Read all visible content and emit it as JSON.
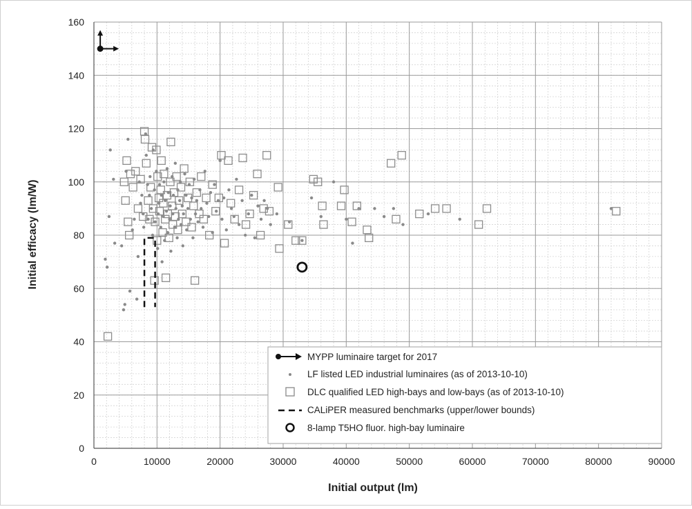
{
  "chart_data": {
    "type": "scatter",
    "xlabel": "Initial output (lm)",
    "ylabel": "Initial efficacy (lm/W)",
    "xlim": [
      0,
      90000
    ],
    "ylim": [
      0,
      160
    ],
    "x_ticks": [
      "0",
      "10000",
      "20000",
      "30000",
      "40000",
      "50000",
      "60000",
      "70000",
      "80000",
      "90000"
    ],
    "y_ticks": [
      "0",
      "20",
      "40",
      "60",
      "80",
      "100",
      "120",
      "140",
      "160"
    ],
    "grid": "major and minor",
    "legend_position": "bottom-right",
    "legend": [
      {
        "label": "MYPP luminaire target for 2017",
        "marker": "arrow-dot"
      },
      {
        "label": "LF listed LED industrial luminaires (as of 2013-10-10)",
        "marker": "small-dot"
      },
      {
        "label": "DLC qualified LED high-bays and low-bays (as of 2013-10-10)",
        "marker": "open-square"
      },
      {
        "label": "CALiPER measured benchmarks (upper/lower bounds)",
        "marker": "dashed-line"
      },
      {
        "label": "8-lamp T5HO fluor. high-bay luminaire",
        "marker": "open-circle"
      }
    ],
    "series": [
      {
        "name": "MYPP luminaire target for 2017",
        "points": [
          [
            1000,
            150
          ]
        ]
      },
      {
        "name": "LF listed LED industrial luminaires (as of 2013-10-10)",
        "points": [
          [
            1800,
            71
          ],
          [
            2100,
            68
          ],
          [
            2400,
            87
          ],
          [
            2600,
            112
          ],
          [
            3100,
            101
          ],
          [
            3300,
            77
          ],
          [
            4400,
            76
          ],
          [
            4700,
            52
          ],
          [
            4900,
            54
          ],
          [
            5100,
            104
          ],
          [
            5400,
            116
          ],
          [
            5700,
            59
          ],
          [
            6100,
            82
          ],
          [
            6400,
            86
          ],
          [
            6800,
            56
          ],
          [
            7000,
            72
          ],
          [
            7200,
            100
          ],
          [
            7400,
            92
          ],
          [
            7600,
            95
          ],
          [
            7800,
            88
          ],
          [
            7900,
            83
          ],
          [
            8200,
            118
          ],
          [
            8300,
            110
          ],
          [
            8500,
            99
          ],
          [
            8600,
            86
          ],
          [
            8800,
            95
          ],
          [
            8900,
            102
          ],
          [
            9100,
            90
          ],
          [
            9300,
            80
          ],
          [
            9400,
            112
          ],
          [
            9600,
            97
          ],
          [
            9700,
            85
          ],
          [
            9900,
            104
          ],
          [
            10100,
            75
          ],
          [
            10200,
            88
          ],
          [
            10300,
            92
          ],
          [
            10400,
            99
          ],
          [
            10600,
            83
          ],
          [
            10700,
            95
          ],
          [
            10800,
            70
          ],
          [
            11000,
            87
          ],
          [
            11100,
            100
          ],
          [
            11200,
            78
          ],
          [
            11300,
            93
          ],
          [
            11500,
            89
          ],
          [
            11600,
            105
          ],
          [
            11700,
            81
          ],
          [
            11800,
            96
          ],
          [
            12000,
            86
          ],
          [
            12100,
            91
          ],
          [
            12200,
            74
          ],
          [
            12400,
            102
          ],
          [
            12500,
            88
          ],
          [
            12600,
            95
          ],
          [
            12800,
            83
          ],
          [
            12900,
            107
          ],
          [
            13000,
            90
          ],
          [
            13200,
            79
          ],
          [
            13300,
            97
          ],
          [
            13400,
            86
          ],
          [
            13600,
            93
          ],
          [
            13700,
            100
          ],
          [
            13800,
            84
          ],
          [
            14000,
            91
          ],
          [
            14100,
            76
          ],
          [
            14200,
            88
          ],
          [
            14400,
            103
          ],
          [
            14600,
            95
          ],
          [
            14700,
            82
          ],
          [
            14900,
            90
          ],
          [
            15100,
            99
          ],
          [
            15300,
            86
          ],
          [
            15500,
            94
          ],
          [
            15700,
            79
          ],
          [
            15900,
            101
          ],
          [
            16100,
            88
          ],
          [
            16300,
            93
          ],
          [
            16500,
            85
          ],
          [
            16800,
            97
          ],
          [
            17000,
            90
          ],
          [
            17300,
            83
          ],
          [
            17600,
            104
          ],
          [
            17900,
            92
          ],
          [
            18200,
            87
          ],
          [
            18500,
            96
          ],
          [
            18800,
            81
          ],
          [
            19100,
            99
          ],
          [
            19400,
            89
          ],
          [
            19700,
            93
          ],
          [
            20000,
            108
          ],
          [
            20300,
            86
          ],
          [
            20600,
            94
          ],
          [
            21000,
            82
          ],
          [
            21400,
            97
          ],
          [
            21800,
            90
          ],
          [
            22200,
            87
          ],
          [
            22600,
            101
          ],
          [
            23000,
            84
          ],
          [
            23500,
            93
          ],
          [
            24000,
            80
          ],
          [
            24500,
            88
          ],
          [
            25000,
            95
          ],
          [
            25500,
            79
          ],
          [
            26000,
            91
          ],
          [
            26500,
            86
          ],
          [
            27000,
            93
          ],
          [
            27500,
            90
          ],
          [
            28000,
            84
          ],
          [
            29000,
            88
          ],
          [
            31000,
            85
          ],
          [
            33000,
            78
          ],
          [
            34500,
            94
          ],
          [
            36000,
            87
          ],
          [
            38000,
            100
          ],
          [
            40000,
            86
          ],
          [
            41000,
            77
          ],
          [
            42000,
            90
          ],
          [
            44500,
            90
          ],
          [
            46000,
            87
          ],
          [
            47500,
            90
          ],
          [
            49000,
            84
          ],
          [
            53000,
            88
          ],
          [
            58000,
            86
          ],
          [
            82000,
            90
          ]
        ]
      },
      {
        "name": "DLC qualified LED high-bays and low-bays (as of 2013-10-10)",
        "points": [
          [
            2200,
            42
          ],
          [
            4800,
            100
          ],
          [
            5000,
            93
          ],
          [
            5200,
            108
          ],
          [
            5400,
            85
          ],
          [
            5600,
            80
          ],
          [
            5800,
            103
          ],
          [
            6200,
            98
          ],
          [
            6600,
            104
          ],
          [
            7000,
            90
          ],
          [
            7400,
            101
          ],
          [
            7800,
            87
          ],
          [
            8000,
            119
          ],
          [
            8100,
            116
          ],
          [
            8300,
            107
          ],
          [
            8600,
            93
          ],
          [
            8800,
            86
          ],
          [
            9000,
            98
          ],
          [
            9200,
            113
          ],
          [
            9400,
            90
          ],
          [
            9600,
            63
          ],
          [
            9700,
            85
          ],
          [
            9900,
            112
          ],
          [
            10000,
            78
          ],
          [
            10100,
            102
          ],
          [
            10300,
            94
          ],
          [
            10400,
            89
          ],
          [
            10600,
            97
          ],
          [
            10700,
            108
          ],
          [
            10900,
            81
          ],
          [
            11000,
            92
          ],
          [
            11100,
            103
          ],
          [
            11300,
            86
          ],
          [
            11400,
            64
          ],
          [
            11600,
            95
          ],
          [
            11700,
            88
          ],
          [
            11900,
            79
          ],
          [
            12100,
            100
          ],
          [
            12200,
            115
          ],
          [
            12400,
            91
          ],
          [
            12500,
            84
          ],
          [
            12700,
            96
          ],
          [
            12900,
            87
          ],
          [
            13100,
            102
          ],
          [
            13300,
            82
          ],
          [
            13500,
            93
          ],
          [
            13800,
            98
          ],
          [
            14000,
            88
          ],
          [
            14300,
            105
          ],
          [
            14600,
            85
          ],
          [
            14900,
            94
          ],
          [
            15200,
            100
          ],
          [
            15500,
            83
          ],
          [
            15800,
            91
          ],
          [
            16000,
            63
          ],
          [
            16300,
            96
          ],
          [
            16700,
            88
          ],
          [
            17000,
            102
          ],
          [
            17400,
            86
          ],
          [
            17800,
            94
          ],
          [
            18300,
            80
          ],
          [
            18800,
            99
          ],
          [
            19300,
            89
          ],
          [
            19800,
            94
          ],
          [
            20200,
            110
          ],
          [
            20700,
            77
          ],
          [
            21300,
            108
          ],
          [
            21700,
            92
          ],
          [
            22300,
            86
          ],
          [
            23000,
            97
          ],
          [
            23600,
            109
          ],
          [
            24100,
            84
          ],
          [
            24700,
            88
          ],
          [
            25300,
            95
          ],
          [
            25900,
            103
          ],
          [
            26400,
            80
          ],
          [
            26900,
            90
          ],
          [
            27400,
            110
          ],
          [
            27800,
            89
          ],
          [
            29200,
            98
          ],
          [
            29400,
            75
          ],
          [
            30800,
            84
          ],
          [
            32000,
            78
          ],
          [
            33000,
            78
          ],
          [
            34800,
            101
          ],
          [
            35500,
            100
          ],
          [
            36200,
            91
          ],
          [
            36400,
            84
          ],
          [
            39200,
            91
          ],
          [
            39700,
            97
          ],
          [
            40900,
            85
          ],
          [
            41700,
            91
          ],
          [
            43300,
            82
          ],
          [
            43600,
            79
          ],
          [
            47100,
            107
          ],
          [
            47900,
            86
          ],
          [
            48800,
            110
          ],
          [
            51600,
            88
          ],
          [
            54100,
            90
          ],
          [
            55900,
            90
          ],
          [
            61000,
            84
          ],
          [
            62300,
            90
          ],
          [
            82800,
            89
          ]
        ]
      },
      {
        "name": "CALiPER measured benchmarks (upper/lower bounds)",
        "points": [
          [
            8000,
            53
          ],
          [
            8000,
            79
          ],
          [
            9700,
            79
          ],
          [
            9700,
            53
          ]
        ]
      },
      {
        "name": "8-lamp T5HO fluor. high-bay luminaire",
        "points": [
          [
            33000,
            68
          ]
        ]
      }
    ]
  }
}
